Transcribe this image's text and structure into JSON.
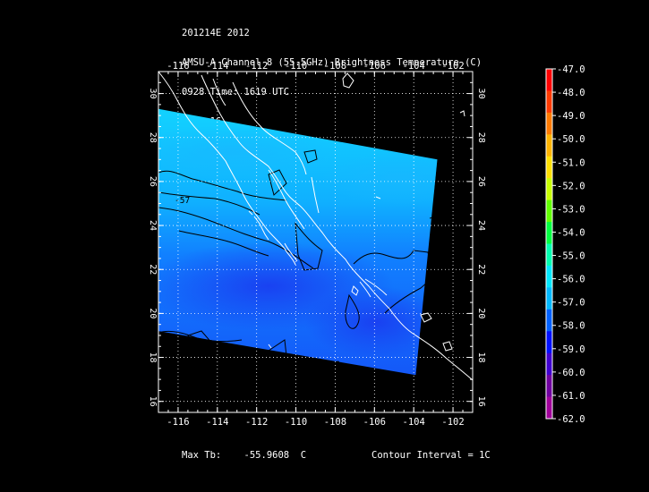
{
  "header": {
    "line1": "201214E 2012",
    "line2": "AMSU-A Channel 8 (55.5GHz) Brightness Temperature (C)",
    "line3": "0928 Time: 1619 UTC",
    "line4": "NOAA-16"
  },
  "map": {
    "lon_ticks": [
      "-116",
      "-114",
      "-112",
      "-110",
      "-108",
      "-106",
      "-104",
      "-102"
    ],
    "lat_ticks": [
      "16",
      "18",
      "20",
      "22",
      "24",
      "26",
      "28",
      "30"
    ],
    "contour_label": "-57",
    "lon_range": [
      -117,
      -101
    ],
    "lat_range": [
      15.5,
      31
    ],
    "swath_corners_lonlat": [
      [
        -117,
        29.3
      ],
      [
        -102.8,
        27
      ],
      [
        -103.9,
        17.2
      ],
      [
        -117,
        19.2
      ]
    ]
  },
  "colorbar": {
    "labels": [
      "-47.0",
      "-48.0",
      "-49.0",
      "-50.0",
      "-51.0",
      "-52.0",
      "-53.0",
      "-54.0",
      "-55.0",
      "-56.0",
      "-57.0",
      "-58.0",
      "-59.0",
      "-60.0",
      "-61.0",
      "-62.0"
    ],
    "colors": [
      "#ff0000",
      "#ff3a00",
      "#ff7a00",
      "#ffb400",
      "#ffe000",
      "#c8ff00",
      "#60ff00",
      "#00ff40",
      "#00ffb0",
      "#00e8ff",
      "#00b8ff",
      "#0060ff",
      "#0010ff",
      "#4000d0",
      "#7000a0",
      "#a0009a"
    ]
  },
  "footer": {
    "max_tb": "Max Tb:    -55.9608  C",
    "contour_interval": "Contour Interval = 1C"
  }
}
